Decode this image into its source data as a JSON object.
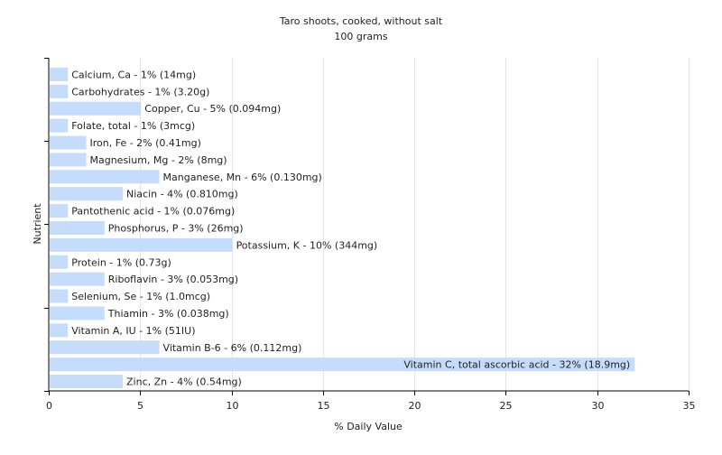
{
  "chart_data": {
    "type": "bar",
    "orientation": "horizontal",
    "title": "Taro shoots, cooked, without salt",
    "subtitle": "100 grams",
    "xlabel": "% Daily Value",
    "ylabel": "Nutrient",
    "xlim": [
      0,
      35
    ],
    "xticks": [
      0,
      5,
      10,
      15,
      20,
      25,
      30,
      35
    ],
    "grid": true,
    "bar_color": "#c6dcfb",
    "categories": [
      "Calcium, Ca - 1% (14mg)",
      "Carbohydrates - 1% (3.20g)",
      "Copper, Cu - 5% (0.094mg)",
      "Folate, total - 1% (3mcg)",
      "Iron, Fe - 2% (0.41mg)",
      "Magnesium, Mg - 2% (8mg)",
      "Manganese, Mn - 6% (0.130mg)",
      "Niacin - 4% (0.810mg)",
      "Pantothenic acid - 1% (0.076mg)",
      "Phosphorus, P - 3% (26mg)",
      "Potassium, K - 10% (344mg)",
      "Protein - 1% (0.73g)",
      "Riboflavin - 3% (0.053mg)",
      "Selenium, Se - 1% (1.0mcg)",
      "Thiamin - 3% (0.038mg)",
      "Vitamin A, IU - 1% (51IU)",
      "Vitamin B-6 - 6% (0.112mg)",
      "Vitamin C, total ascorbic acid - 32% (18.9mg)",
      "Zinc, Zn - 4% (0.54mg)"
    ],
    "values": [
      1,
      1,
      5,
      1,
      2,
      2,
      6,
      4,
      1,
      3,
      10,
      1,
      3,
      1,
      3,
      1,
      6,
      32,
      4
    ]
  }
}
